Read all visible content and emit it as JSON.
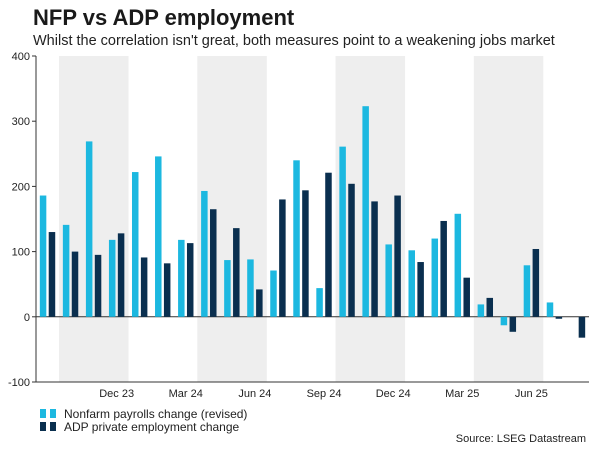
{
  "title": "NFP vs ADP employment",
  "subtitle": "Whilst the correlation isn't great, both measures point to a weakening jobs market",
  "source": "Source: LSEG Datastream",
  "colors": {
    "nfp": "#1cb8e0",
    "adp": "#0a2f4f",
    "shade": "#eeeeee",
    "axis": "#333333"
  },
  "chart_data": {
    "type": "bar",
    "categories": [
      "Sep 23",
      "Oct 23",
      "Nov 23",
      "Dec 23",
      "Jan 24",
      "Feb 24",
      "Mar 24",
      "Apr 24",
      "May 24",
      "Jun 24",
      "Jul 24",
      "Aug 24",
      "Sep 24",
      "Oct 24",
      "Nov 24",
      "Dec 24",
      "Jan 25",
      "Feb 25",
      "Mar 25",
      "Apr 25",
      "May 25",
      "Jun 25",
      "Jul 25",
      "Aug 25"
    ],
    "x_tick_labels": [
      "Dec 23",
      "Mar 24",
      "Jun 24",
      "Sep 24",
      "Dec 24",
      "Mar 25",
      "Jun 25"
    ],
    "x_tick_categories": [
      "Dec 23",
      "Mar 24",
      "Jun 24",
      "Sep 24",
      "Dec 24",
      "Mar 25",
      "Jun 25"
    ],
    "ylim": [
      -100,
      400
    ],
    "yticks": [
      -100,
      0,
      100,
      200,
      300,
      400
    ],
    "grid": false,
    "legend_position": "bottom-left",
    "shaded_quarters": [
      "Oct 23",
      "Nov 23",
      "Dec 23",
      "Apr 24",
      "May 24",
      "Jun 24",
      "Oct 24",
      "Nov 24",
      "Dec 24",
      "Apr 25",
      "May 25",
      "Jun 25"
    ],
    "series": [
      {
        "name": "Nonfarm payrolls change (revised)",
        "values": [
          186,
          141,
          269,
          118,
          222,
          246,
          118,
          193,
          87,
          88,
          71,
          240,
          44,
          261,
          323,
          111,
          102,
          120,
          158,
          19,
          -13,
          79,
          22,
          0
        ]
      },
      {
        "name": "ADP private employment change",
        "values": [
          130,
          100,
          95,
          128,
          91,
          82,
          113,
          165,
          136,
          42,
          180,
          194,
          221,
          204,
          177,
          186,
          84,
          147,
          60,
          29,
          -23,
          104,
          -3,
          -32
        ]
      }
    ]
  }
}
